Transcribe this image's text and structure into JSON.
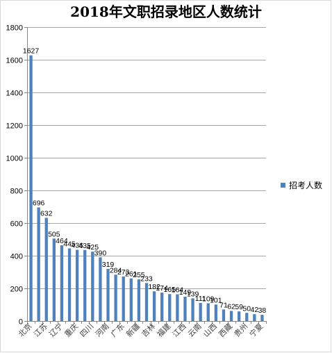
{
  "chart_data": {
    "type": "bar",
    "title": "2018年文职招录地区人数统计",
    "xlabel": "",
    "ylabel": "",
    "ylim": [
      0,
      1800
    ],
    "yticks": [
      0,
      200,
      400,
      600,
      800,
      1000,
      1200,
      1400,
      1600,
      1800
    ],
    "grid": true,
    "legend_position": "right",
    "categories": [
      "北京",
      "",
      "江苏",
      "",
      "辽宁",
      "",
      "重庆",
      "",
      "四川",
      "",
      "河南",
      "",
      "广东",
      "",
      "新疆",
      "",
      "吉林",
      "",
      "福建",
      "",
      "江西",
      "",
      "云南",
      "",
      "山西",
      "",
      "西藏",
      "",
      "贵州",
      "",
      "宁夏"
    ],
    "series": [
      {
        "name": "招考人数",
        "color": "#4f81bd",
        "values": [
          1627,
          696,
          632,
          505,
          464,
          445,
          436,
          435,
          425,
          390,
          319,
          284,
          273,
          261,
          255,
          233,
          182,
          174,
          165,
          164,
          149,
          139,
          111,
          109,
          101,
          71,
          62,
          59,
          50,
          42,
          38
        ]
      }
    ]
  }
}
